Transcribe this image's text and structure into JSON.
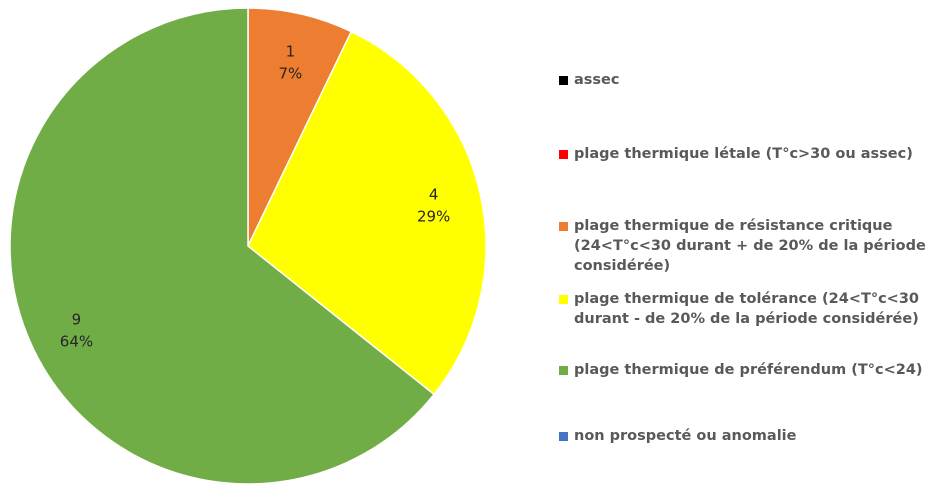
{
  "chart_data": {
    "type": "pie",
    "title": "",
    "series": [
      {
        "name": "assec",
        "value": 0,
        "percent": "",
        "color": "#000000"
      },
      {
        "name": "plage thermique létale (T°c>30 ou assec)",
        "value": 0,
        "percent": "",
        "color": "#ff0000"
      },
      {
        "name": "plage thermique de résistance critique\n(24<T°c<30 durant + de 20% de la période\nconsidérée)",
        "value": 1,
        "percent": "7%",
        "color": "#ed7d31"
      },
      {
        "name": "plage  thermique de tolérance (24<T°c<30\ndurant - de 20% de la période considérée)",
        "value": 4,
        "percent": "29%",
        "color": "#ffff00"
      },
      {
        "name": "plage thermique de préférendum (T°c<24)",
        "value": 9,
        "percent": "64%",
        "color": "#70ad47"
      },
      {
        "name": "non prospecté ou anomalie",
        "value": 0,
        "percent": "",
        "color": "#4472c4"
      }
    ],
    "legend_position": "right"
  }
}
